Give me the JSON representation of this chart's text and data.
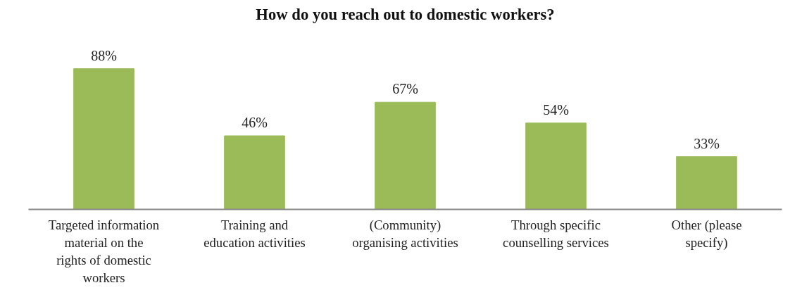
{
  "chart_data": {
    "type": "bar",
    "title": "How do you reach out to domestic workers?",
    "categories": [
      "Targeted information material on the rights of domestic workers",
      "Training and education activities",
      "(Community) organising activities",
      "Through specific counselling services",
      "Other (please specify)"
    ],
    "values": [
      88,
      46,
      67,
      54,
      33
    ],
    "color": "#9bbb59",
    "data_labels": true,
    "value_labels": [
      "88%",
      "46%",
      "67%",
      "54%",
      "33%"
    ]
  }
}
